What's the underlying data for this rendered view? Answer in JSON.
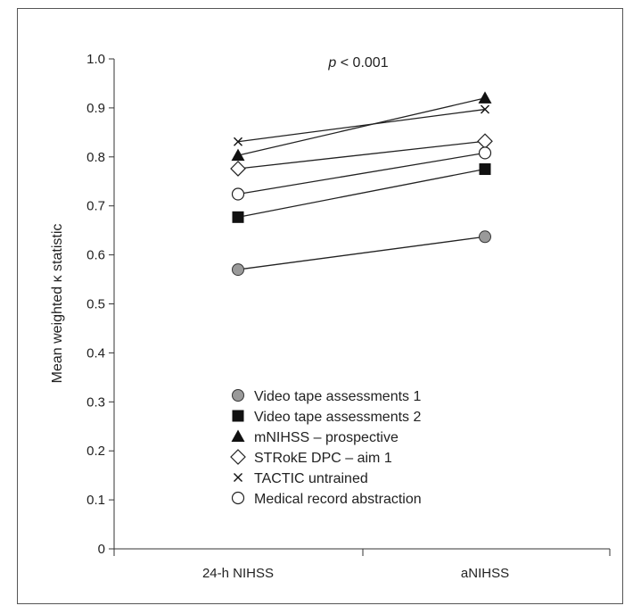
{
  "chart_data": {
    "type": "line",
    "categories": [
      "24-h NIHSS",
      "aNIHSS"
    ],
    "ylabel": "Mean weighted κ statistic",
    "xlabel": "",
    "ylim": [
      0,
      1.0
    ],
    "yticks": [
      "0",
      "0.1",
      "0.2",
      "0.3",
      "0.4",
      "0.5",
      "0.6",
      "0.7",
      "0.8",
      "0.9",
      "1.0"
    ],
    "annotation_p": "p",
    "annotation_rest": " < 0.001",
    "legend_position": "bottom-center",
    "series": [
      {
        "name": "Video tape assessments 1",
        "marker": "circle-filled",
        "color": "#9a9a9a",
        "values": [
          0.57,
          0.637
        ]
      },
      {
        "name": "Video tape assessments 2",
        "marker": "square-filled",
        "color": "#111111",
        "values": [
          0.677,
          0.775
        ]
      },
      {
        "name": "mNIHSS – prospective",
        "marker": "triangle-filled",
        "color": "#111111",
        "values": [
          0.803,
          0.92
        ]
      },
      {
        "name": "STRokE DPC – aim 1",
        "marker": "diamond-open",
        "color": "#111111",
        "values": [
          0.776,
          0.832
        ]
      },
      {
        "name": "TACTIC untrained",
        "marker": "x",
        "color": "#111111",
        "values": [
          0.831,
          0.897
        ]
      },
      {
        "name": "Medical record abstraction",
        "marker": "circle-open",
        "color": "#111111",
        "values": [
          0.724,
          0.808
        ]
      }
    ]
  }
}
